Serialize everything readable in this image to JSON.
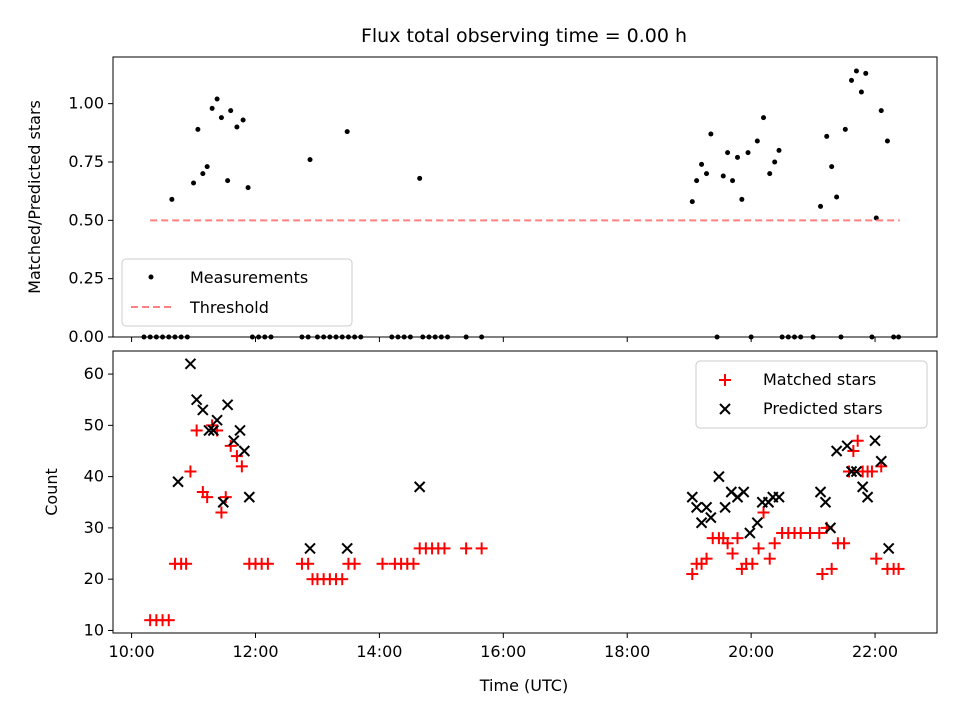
{
  "chart_data": [
    {
      "type": "scatter",
      "title": "Flux total observing time = 0.00 h",
      "ylabel": "Matched/Predicted stars",
      "xlabel": "",
      "x_unit": "hours UTC",
      "xlim": [
        9.7,
        23.0
      ],
      "ylim": [
        0.0,
        1.2
      ],
      "yticks": [
        "0.00",
        "0.25",
        "0.50",
        "0.75",
        "1.00"
      ],
      "ytick_values": [
        0.0,
        0.25,
        0.5,
        0.75,
        1.0
      ],
      "legend_position": "lower-left",
      "series": [
        {
          "name": "Measurements",
          "marker": "dot",
          "color": "#000000",
          "points": [
            [
              10.2,
              0.0
            ],
            [
              10.3,
              0.0
            ],
            [
              10.4,
              0.0
            ],
            [
              10.5,
              0.0
            ],
            [
              10.6,
              0.0
            ],
            [
              10.7,
              0.0
            ],
            [
              10.8,
              0.0
            ],
            [
              10.9,
              0.0
            ],
            [
              10.65,
              0.59
            ],
            [
              11.0,
              0.66
            ],
            [
              11.07,
              0.89
            ],
            [
              11.15,
              0.7
            ],
            [
              11.22,
              0.73
            ],
            [
              11.3,
              0.98
            ],
            [
              11.38,
              1.02
            ],
            [
              11.45,
              0.94
            ],
            [
              11.55,
              0.67
            ],
            [
              11.6,
              0.97
            ],
            [
              11.7,
              0.9
            ],
            [
              11.8,
              0.93
            ],
            [
              11.88,
              0.64
            ],
            [
              11.95,
              0.0
            ],
            [
              12.05,
              0.0
            ],
            [
              12.15,
              0.0
            ],
            [
              12.25,
              0.0
            ],
            [
              12.75,
              0.0
            ],
            [
              12.85,
              0.0
            ],
            [
              12.88,
              0.76
            ],
            [
              13.0,
              0.0
            ],
            [
              13.1,
              0.0
            ],
            [
              13.2,
              0.0
            ],
            [
              13.3,
              0.0
            ],
            [
              13.4,
              0.0
            ],
            [
              13.48,
              0.88
            ],
            [
              13.5,
              0.0
            ],
            [
              13.6,
              0.0
            ],
            [
              13.7,
              0.0
            ],
            [
              14.2,
              0.0
            ],
            [
              14.3,
              0.0
            ],
            [
              14.4,
              0.0
            ],
            [
              14.5,
              0.0
            ],
            [
              14.65,
              0.68
            ],
            [
              14.7,
              0.0
            ],
            [
              14.8,
              0.0
            ],
            [
              14.9,
              0.0
            ],
            [
              15.0,
              0.0
            ],
            [
              15.1,
              0.0
            ],
            [
              15.4,
              0.0
            ],
            [
              15.65,
              0.0
            ],
            [
              19.05,
              0.58
            ],
            [
              19.12,
              0.67
            ],
            [
              19.2,
              0.74
            ],
            [
              19.28,
              0.7
            ],
            [
              19.35,
              0.87
            ],
            [
              19.45,
              0.0
            ],
            [
              19.55,
              0.69
            ],
            [
              19.62,
              0.79
            ],
            [
              19.7,
              0.67
            ],
            [
              19.78,
              0.77
            ],
            [
              19.85,
              0.59
            ],
            [
              19.95,
              0.79
            ],
            [
              20.0,
              0.0
            ],
            [
              20.1,
              0.84
            ],
            [
              20.2,
              0.94
            ],
            [
              20.3,
              0.7
            ],
            [
              20.38,
              0.75
            ],
            [
              20.45,
              0.8
            ],
            [
              20.5,
              0.0
            ],
            [
              20.6,
              0.0
            ],
            [
              20.7,
              0.0
            ],
            [
              20.8,
              0.0
            ],
            [
              21.0,
              0.0
            ],
            [
              21.12,
              0.56
            ],
            [
              21.22,
              0.86
            ],
            [
              21.3,
              0.73
            ],
            [
              21.38,
              0.6
            ],
            [
              21.45,
              0.0
            ],
            [
              21.52,
              0.89
            ],
            [
              21.62,
              1.1
            ],
            [
              21.7,
              1.14
            ],
            [
              21.78,
              1.05
            ],
            [
              21.85,
              1.13
            ],
            [
              21.95,
              0.0
            ],
            [
              22.02,
              0.51
            ],
            [
              22.1,
              0.97
            ],
            [
              22.2,
              0.84
            ],
            [
              22.3,
              0.0
            ],
            [
              22.38,
              0.0
            ]
          ]
        },
        {
          "name": "Threshold",
          "marker": "dashed-line",
          "color": "#ff8080",
          "points": [
            [
              10.3,
              0.5
            ],
            [
              22.4,
              0.5
            ]
          ]
        }
      ]
    },
    {
      "type": "scatter",
      "title": "",
      "ylabel": "Count",
      "xlabel": "Time (UTC)",
      "x_unit": "hours UTC",
      "xlim": [
        9.7,
        23.0
      ],
      "ylim": [
        9.5,
        64.5
      ],
      "yticks": [
        "10",
        "20",
        "30",
        "40",
        "50",
        "60"
      ],
      "ytick_values": [
        10,
        20,
        30,
        40,
        50,
        60
      ],
      "xticks": [
        "10:00",
        "12:00",
        "14:00",
        "16:00",
        "18:00",
        "20:00",
        "22:00"
      ],
      "xtick_values": [
        10,
        12,
        14,
        16,
        18,
        20,
        22
      ],
      "legend_position": "top-right",
      "series": [
        {
          "name": "Matched stars",
          "marker": "plus",
          "color": "#ff0000",
          "points": [
            [
              10.3,
              12
            ],
            [
              10.4,
              12
            ],
            [
              10.5,
              12
            ],
            [
              10.6,
              12
            ],
            [
              10.7,
              23
            ],
            [
              10.8,
              23
            ],
            [
              10.88,
              23
            ],
            [
              10.95,
              41
            ],
            [
              11.05,
              49
            ],
            [
              11.15,
              37
            ],
            [
              11.22,
              36
            ],
            [
              11.3,
              50
            ],
            [
              11.38,
              49
            ],
            [
              11.45,
              33
            ],
            [
              11.52,
              36
            ],
            [
              11.6,
              46
            ],
            [
              11.7,
              44
            ],
            [
              11.78,
              42
            ],
            [
              11.9,
              23
            ],
            [
              12.0,
              23
            ],
            [
              12.1,
              23
            ],
            [
              12.2,
              23
            ],
            [
              12.75,
              23
            ],
            [
              12.85,
              23
            ],
            [
              12.92,
              20
            ],
            [
              13.0,
              20
            ],
            [
              13.1,
              20
            ],
            [
              13.2,
              20
            ],
            [
              13.3,
              20
            ],
            [
              13.4,
              20
            ],
            [
              13.5,
              23
            ],
            [
              13.6,
              23
            ],
            [
              14.05,
              23
            ],
            [
              14.25,
              23
            ],
            [
              14.35,
              23
            ],
            [
              14.45,
              23
            ],
            [
              14.55,
              23
            ],
            [
              14.65,
              26
            ],
            [
              14.75,
              26
            ],
            [
              14.85,
              26
            ],
            [
              14.95,
              26
            ],
            [
              15.05,
              26
            ],
            [
              15.4,
              26
            ],
            [
              15.65,
              26
            ],
            [
              19.05,
              21
            ],
            [
              19.12,
              23
            ],
            [
              19.2,
              23
            ],
            [
              19.28,
              24
            ],
            [
              19.38,
              28
            ],
            [
              19.48,
              28
            ],
            [
              19.55,
              28
            ],
            [
              19.62,
              27
            ],
            [
              19.7,
              25
            ],
            [
              19.78,
              28
            ],
            [
              19.85,
              22
            ],
            [
              19.92,
              23
            ],
            [
              20.02,
              23
            ],
            [
              20.12,
              26
            ],
            [
              20.2,
              33
            ],
            [
              20.3,
              24
            ],
            [
              20.38,
              27
            ],
            [
              20.5,
              29
            ],
            [
              20.6,
              29
            ],
            [
              20.7,
              29
            ],
            [
              20.8,
              29
            ],
            [
              20.95,
              29
            ],
            [
              21.1,
              29
            ],
            [
              21.15,
              21
            ],
            [
              21.22,
              30
            ],
            [
              21.3,
              22
            ],
            [
              21.4,
              27
            ],
            [
              21.5,
              27
            ],
            [
              21.58,
              41
            ],
            [
              21.65,
              45
            ],
            [
              21.72,
              47
            ],
            [
              21.8,
              41
            ],
            [
              21.88,
              41
            ],
            [
              21.95,
              41
            ],
            [
              22.02,
              24
            ],
            [
              22.1,
              42
            ],
            [
              22.2,
              22
            ],
            [
              22.3,
              22
            ],
            [
              22.38,
              22
            ]
          ]
        },
        {
          "name": "Predicted stars",
          "marker": "x",
          "color": "#000000",
          "points": [
            [
              10.75,
              39
            ],
            [
              10.95,
              62
            ],
            [
              11.05,
              55
            ],
            [
              11.15,
              53
            ],
            [
              11.25,
              49
            ],
            [
              11.32,
              49
            ],
            [
              11.38,
              51
            ],
            [
              11.48,
              35
            ],
            [
              11.55,
              54
            ],
            [
              11.65,
              47
            ],
            [
              11.75,
              49
            ],
            [
              11.82,
              45
            ],
            [
              11.9,
              36
            ],
            [
              12.88,
              26
            ],
            [
              13.48,
              26
            ],
            [
              14.65,
              38
            ],
            [
              19.05,
              36
            ],
            [
              19.12,
              34
            ],
            [
              19.2,
              31
            ],
            [
              19.28,
              34
            ],
            [
              19.35,
              32
            ],
            [
              19.48,
              40
            ],
            [
              19.58,
              34
            ],
            [
              19.68,
              37
            ],
            [
              19.78,
              36
            ],
            [
              19.88,
              37
            ],
            [
              19.98,
              29
            ],
            [
              20.1,
              31
            ],
            [
              20.18,
              35
            ],
            [
              20.28,
              35
            ],
            [
              20.35,
              36
            ],
            [
              20.45,
              36
            ],
            [
              21.12,
              37
            ],
            [
              21.2,
              35
            ],
            [
              21.28,
              30
            ],
            [
              21.38,
              45
            ],
            [
              21.55,
              46
            ],
            [
              21.62,
              41
            ],
            [
              21.7,
              41
            ],
            [
              21.8,
              38
            ],
            [
              21.88,
              36
            ],
            [
              22.0,
              47
            ],
            [
              22.1,
              43
            ],
            [
              22.22,
              26
            ]
          ]
        }
      ]
    }
  ]
}
